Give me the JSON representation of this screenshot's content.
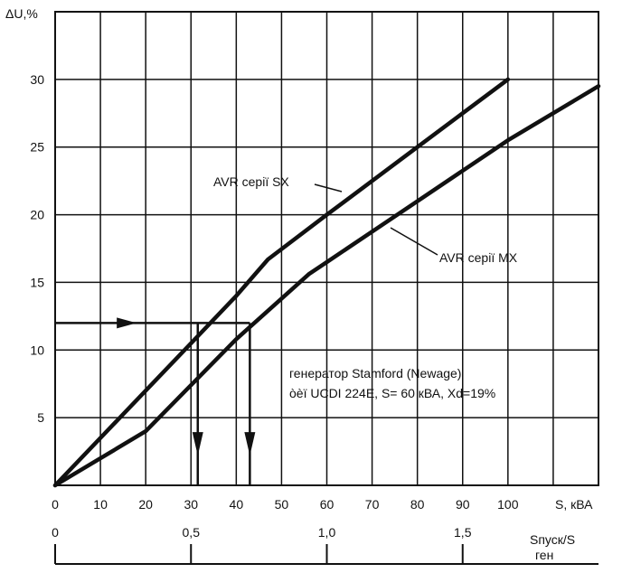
{
  "chart_data": {
    "type": "line",
    "ylabel": "ΔU,%",
    "xlabel": "S, кВА",
    "xlim": [
      0,
      120
    ],
    "ylim": [
      0,
      35
    ],
    "x_ticks": [
      0,
      10,
      20,
      30,
      40,
      50,
      60,
      70,
      80,
      90,
      100
    ],
    "y_ticks": [
      5,
      10,
      15,
      20,
      25,
      30
    ],
    "grid": true,
    "second_axis": {
      "label_line1": "Sпуск/S",
      "label_line2": "ген",
      "ticks": [
        {
          "value": 0,
          "label": "0"
        },
        {
          "value": 0.5,
          "label": "0,5"
        },
        {
          "value": 1.0,
          "label": "1,0"
        },
        {
          "value": 1.5,
          "label": "1,5"
        }
      ]
    },
    "series": [
      {
        "name": "AVR серії SX",
        "points": [
          [
            0,
            0
          ],
          [
            10,
            3.5
          ],
          [
            20,
            7
          ],
          [
            30,
            10.5
          ],
          [
            40,
            14
          ],
          [
            47,
            16.7
          ],
          [
            60,
            20
          ],
          [
            80,
            25
          ],
          [
            100,
            30
          ]
        ]
      },
      {
        "name": "AVR серії MX",
        "points": [
          [
            0,
            0
          ],
          [
            20,
            4
          ],
          [
            40,
            10.8
          ],
          [
            56,
            15.6
          ],
          [
            60,
            16.5
          ],
          [
            80,
            21
          ],
          [
            100,
            25.5
          ],
          [
            120,
            29.5
          ]
        ]
      }
    ],
    "annotations": {
      "label_sx": "AVR серії SX",
      "label_mx": "AVR серії MX",
      "generator_line1": "генератор Stamford (Newage)",
      "generator_line2": "òèï UCDI 224E, S= 60 кВА, Xd=19%"
    },
    "reference_lines": {
      "y_level": 12,
      "x_drops": [
        31.5,
        43
      ]
    }
  }
}
